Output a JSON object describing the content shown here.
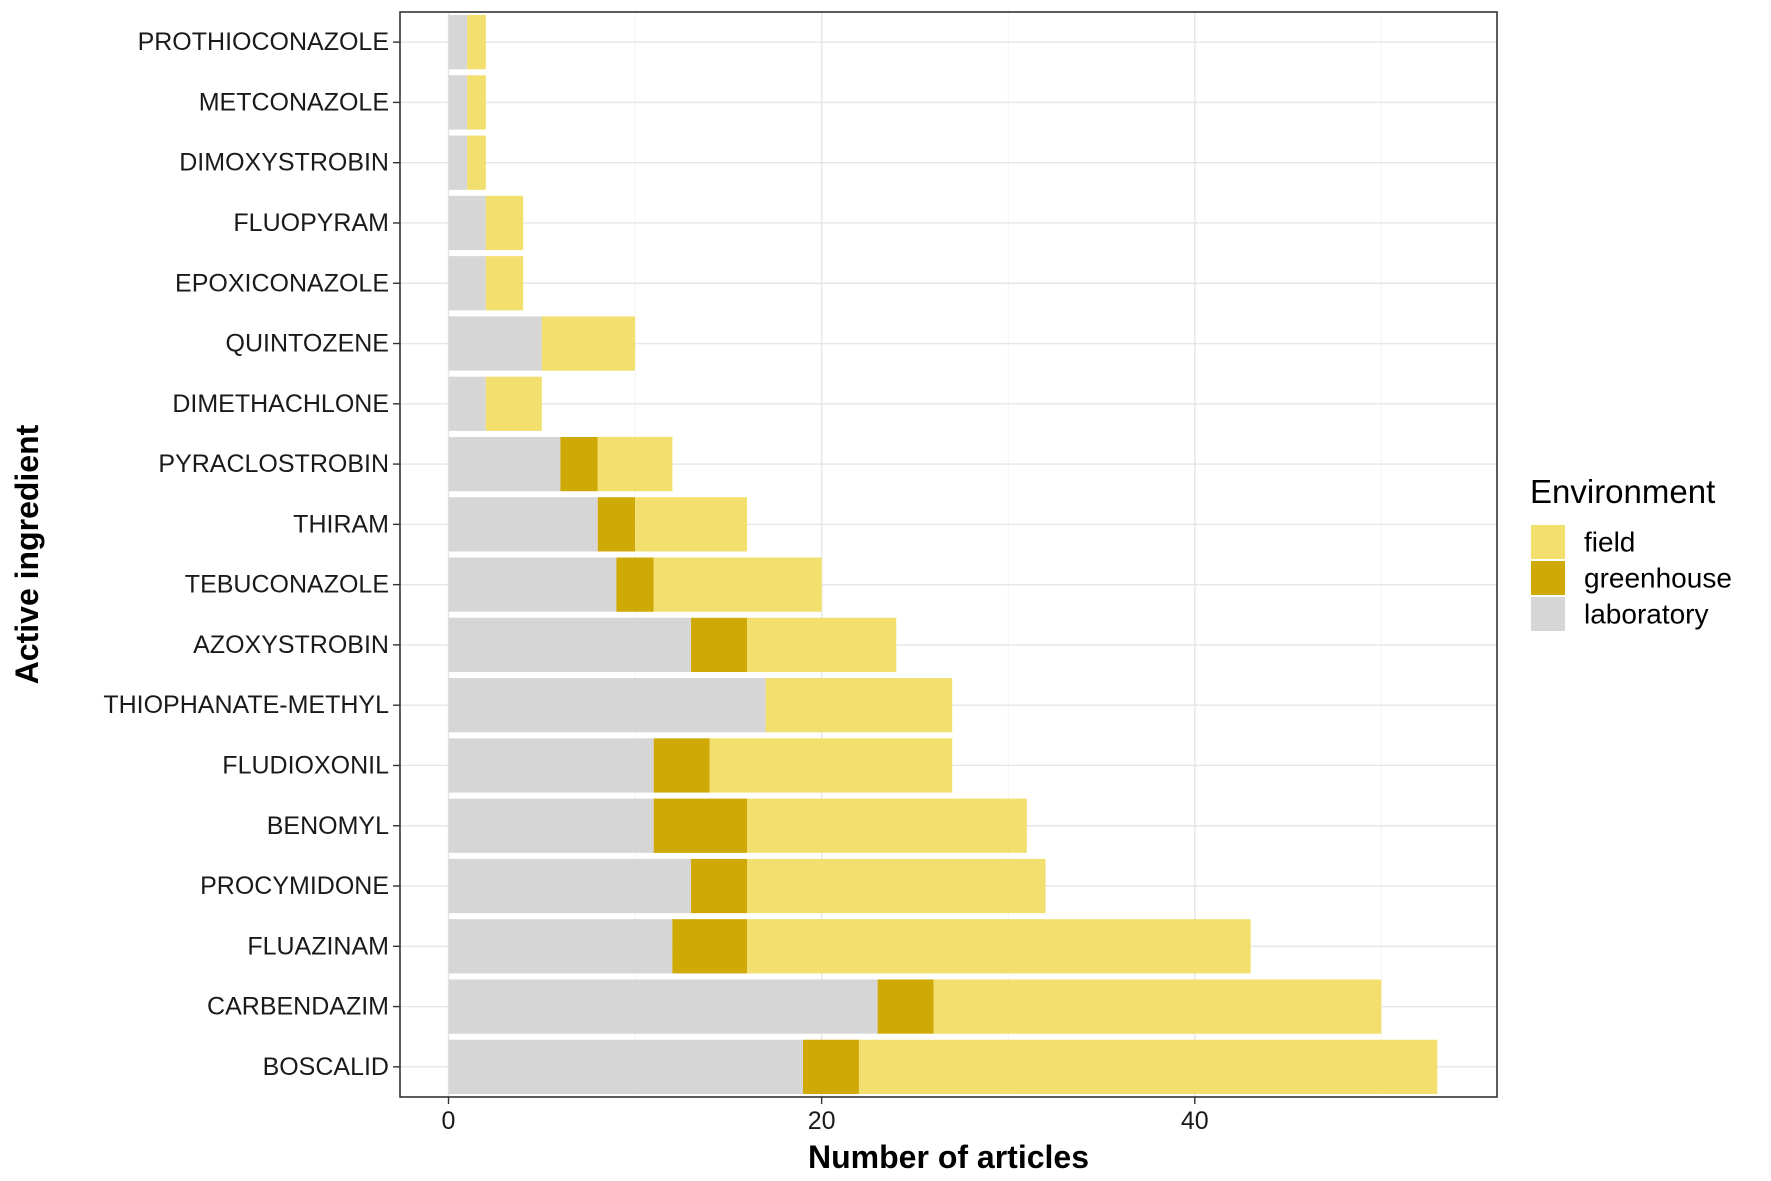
{
  "chart_data": {
    "type": "bar",
    "orientation": "horizontal",
    "stacked": true,
    "xlabel": "Number of articles",
    "ylabel": "Active ingredient",
    "xlim": [
      -2.6,
      56.2
    ],
    "x_ticks": [
      0,
      20,
      40
    ],
    "grid": true,
    "legend": {
      "title": "Environment",
      "position": "right"
    },
    "categories": [
      "PROTHIOCONAZOLE",
      "METCONAZOLE",
      "DIMOXYSTROBIN",
      "FLUOPYRAM",
      "EPOXICONAZOLE",
      "QUINTOZENE",
      "DIMETHACHLONE",
      "PYRACLOSTROBIN",
      "THIRAM",
      "TEBUCONAZOLE",
      "AZOXYSTROBIN",
      "THIOPHANATE-METHYL",
      "FLUDIOXONIL",
      "BENOMYL",
      "PROCYMIDONE",
      "FLUAZINAM",
      "CARBENDAZIM",
      "BOSCALID"
    ],
    "series": [
      {
        "name": "laboratory",
        "color": "#d6d6d6",
        "values": [
          1,
          1,
          1,
          2,
          2,
          5,
          2,
          6,
          8,
          9,
          13,
          17,
          11,
          11,
          13,
          12,
          23,
          19
        ]
      },
      {
        "name": "greenhouse",
        "color": "#cfa905",
        "values": [
          0,
          0,
          0,
          0,
          0,
          0,
          0,
          2,
          2,
          2,
          3,
          0,
          3,
          5,
          3,
          4,
          3,
          3
        ]
      },
      {
        "name": "field",
        "color": "#f2df6e",
        "values": [
          1,
          1,
          1,
          2,
          2,
          5,
          3,
          4,
          6,
          9,
          8,
          10,
          13,
          15,
          16,
          27,
          24,
          31
        ]
      }
    ],
    "legend_order": [
      "field",
      "greenhouse",
      "laboratory"
    ]
  }
}
